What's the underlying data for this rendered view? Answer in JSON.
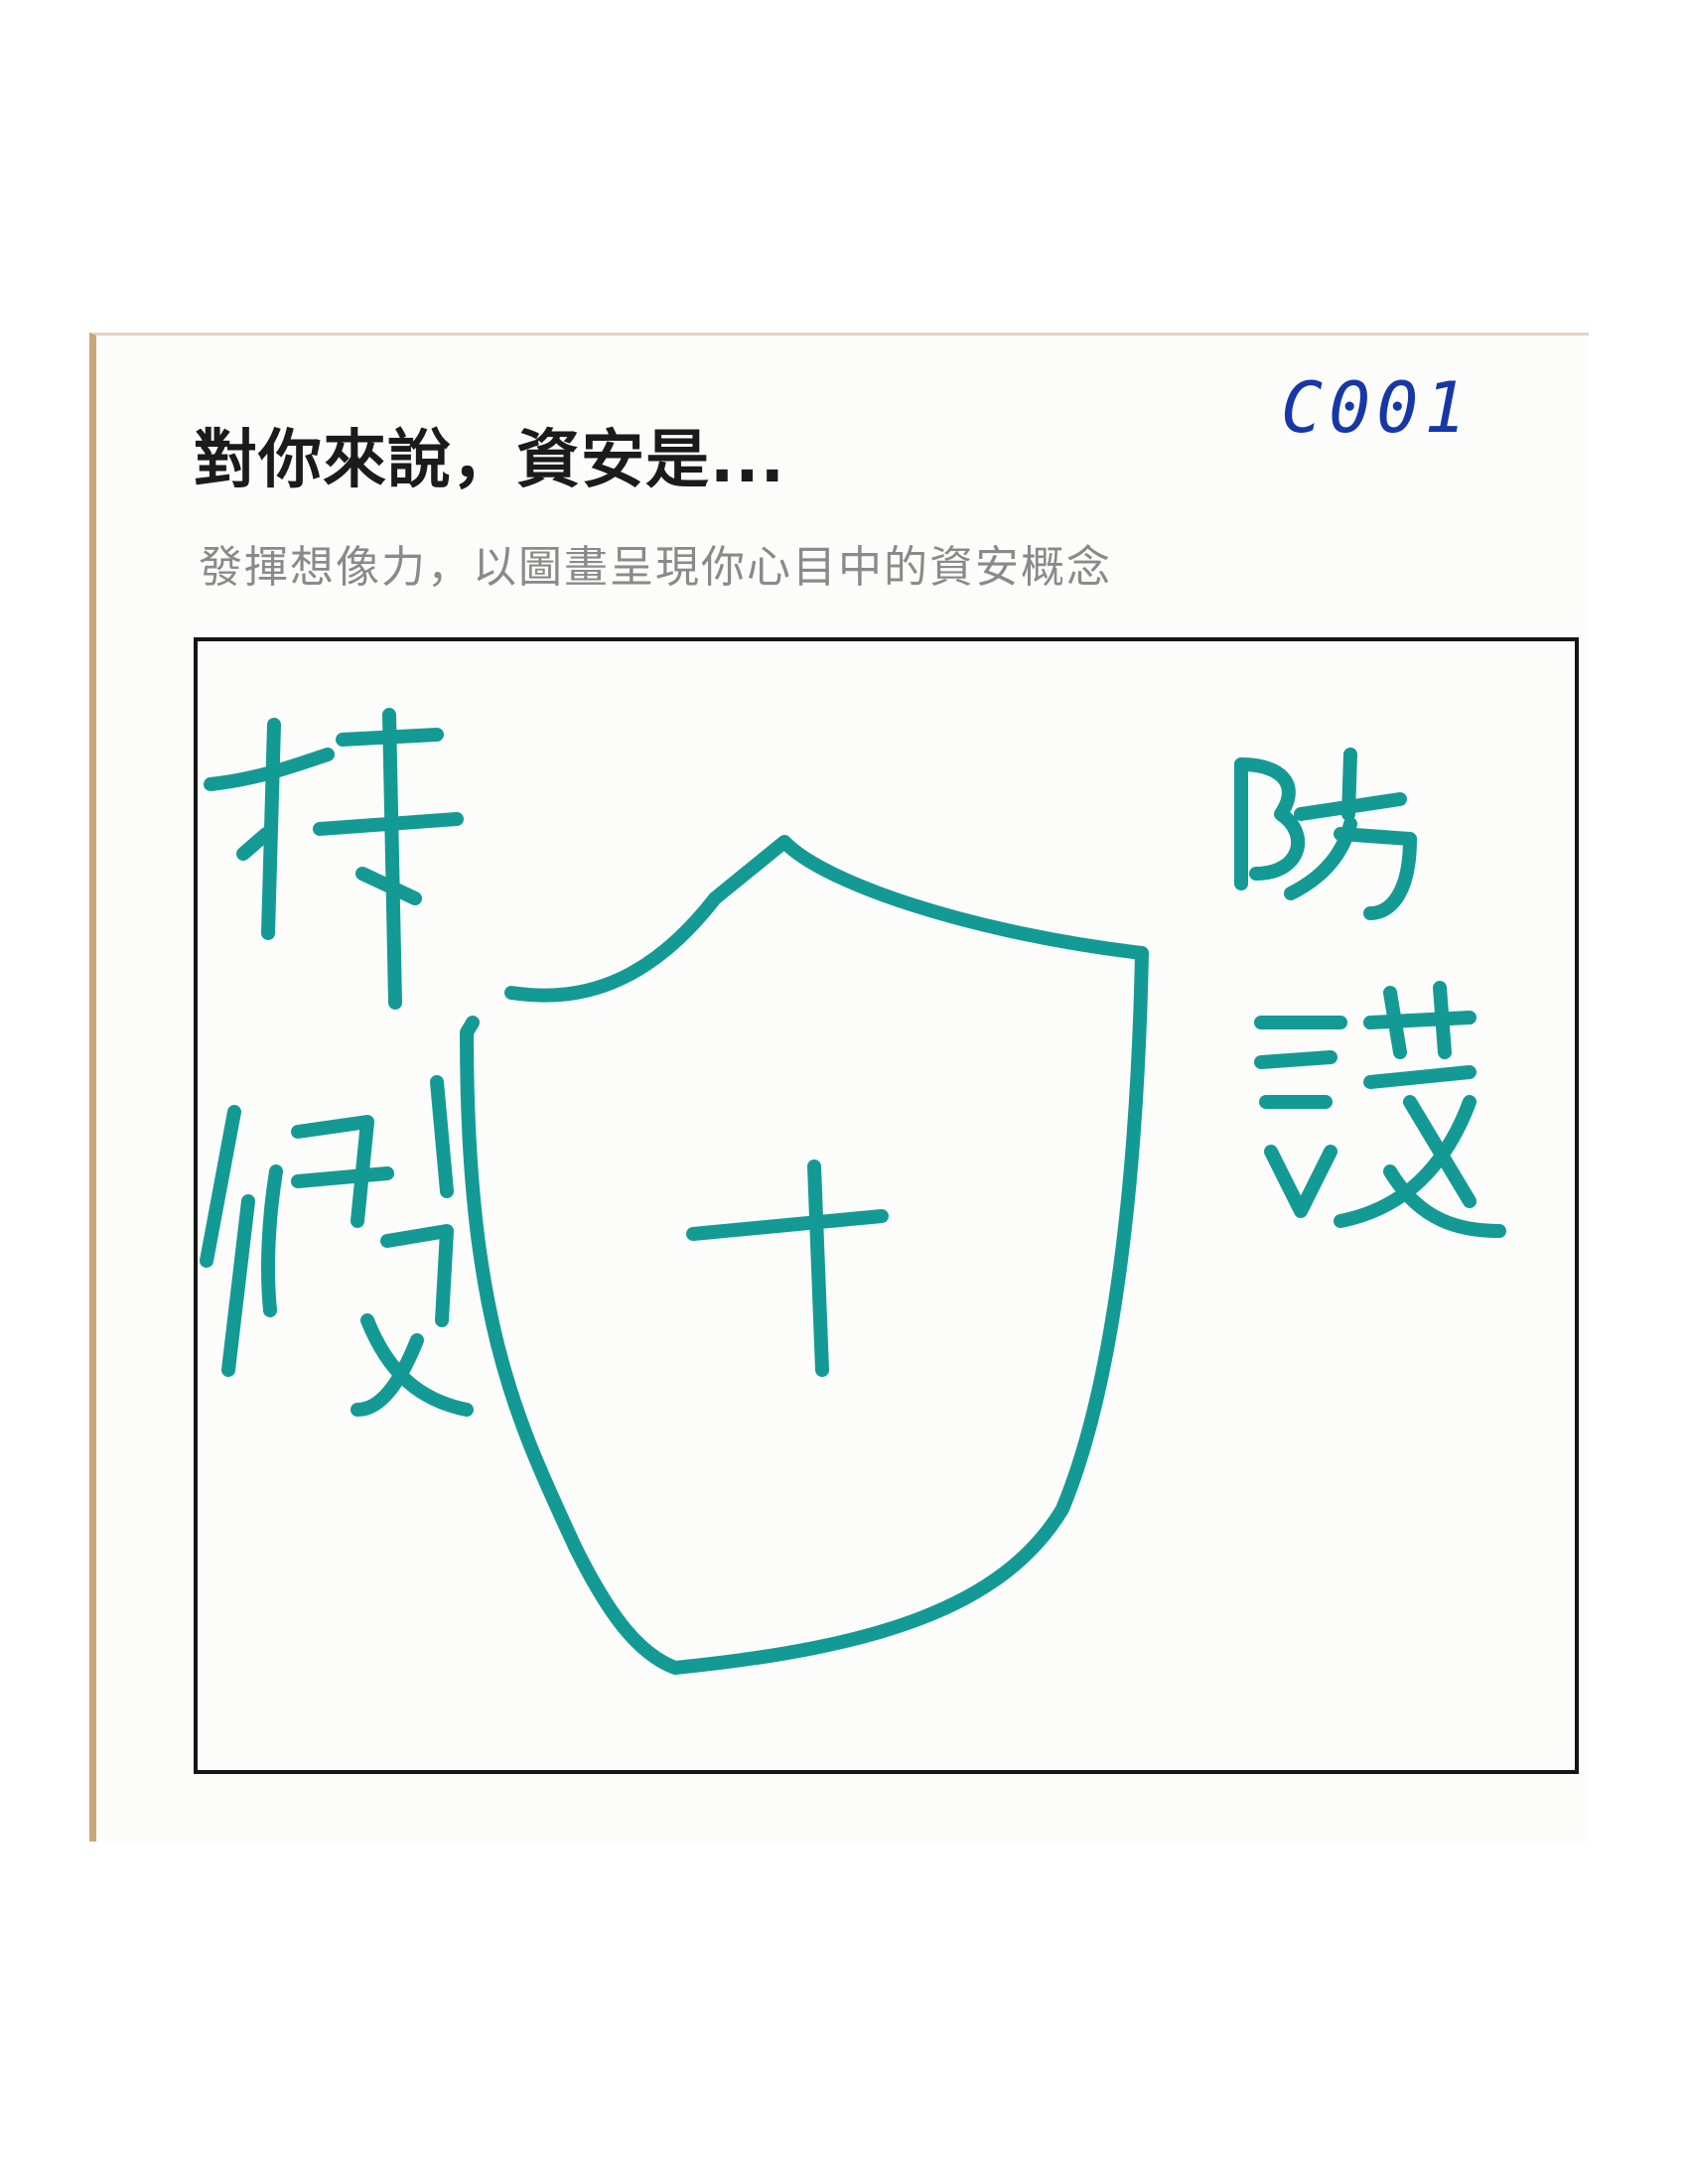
{
  "card": {
    "title": "對你來說，資安是...",
    "subtitle": "發揮想像力，以圖畫呈現你心目中的資安概念",
    "code": "C001"
  },
  "drawing": {
    "left_text": "持續",
    "right_text": "防護",
    "ink_color": "#149a95",
    "icons": [
      "shield-icon",
      "cross-icon"
    ]
  }
}
